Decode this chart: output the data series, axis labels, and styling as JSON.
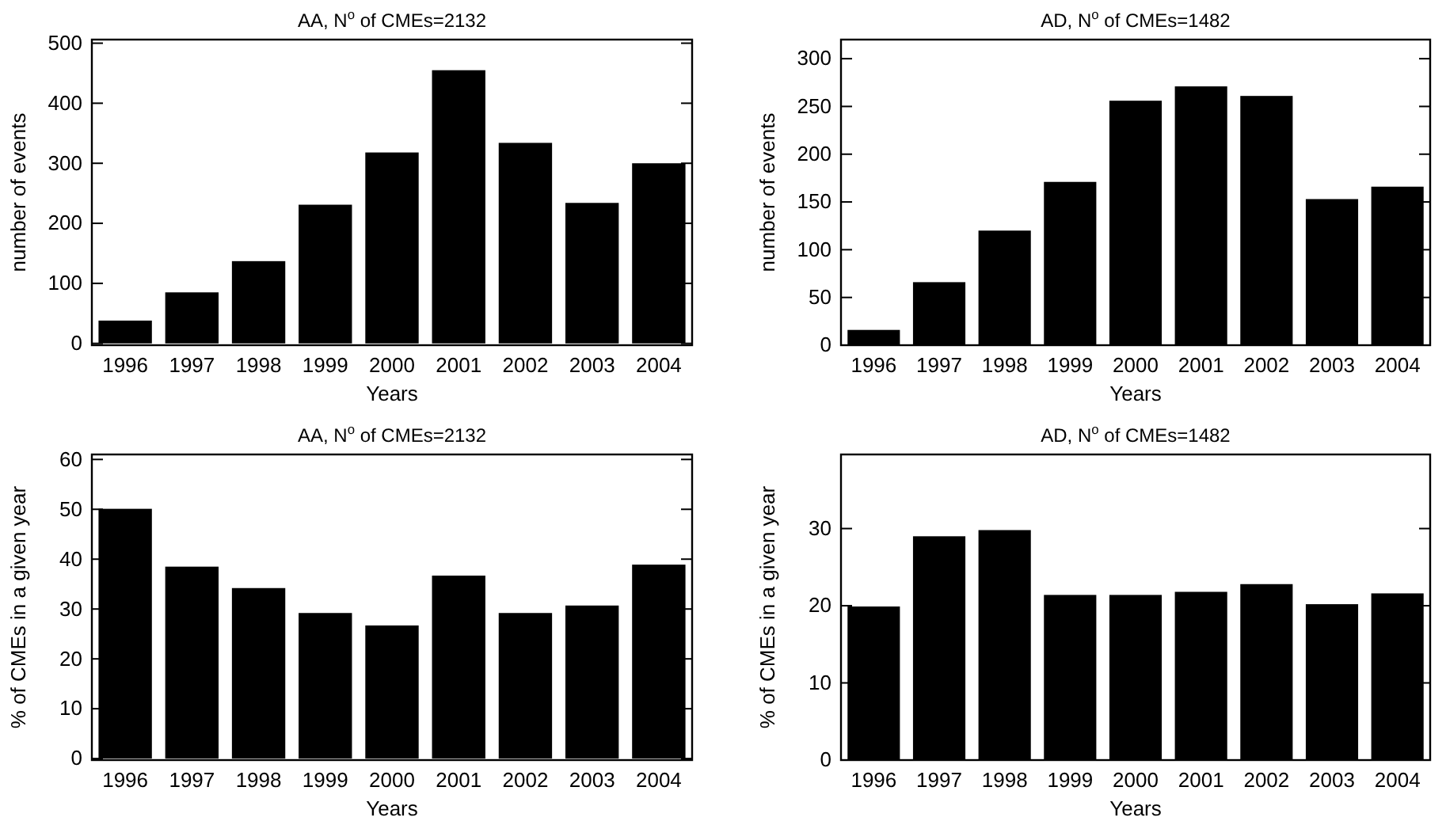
{
  "chart_data": [
    {
      "type": "bar",
      "title": "AA, N$^{o}$ of CMEs=2132",
      "xlabel": "Years",
      "ylabel": "number of events",
      "categories": [
        "1996",
        "1997",
        "1998",
        "1999",
        "2000",
        "2001",
        "2002",
        "2003",
        "2004"
      ],
      "values": [
        38,
        85,
        137,
        231,
        318,
        455,
        334,
        234,
        300
      ],
      "color": "#000000",
      "ylim": [
        -3,
        506
      ],
      "yticks": [
        0,
        100,
        200,
        300,
        400,
        500
      ]
    },
    {
      "type": "bar",
      "title": "AD, N$^{o}$ of CMEs=1482",
      "xlabel": "Years",
      "ylabel": "number of events",
      "categories": [
        "1996",
        "1997",
        "1998",
        "1999",
        "2000",
        "2001",
        "2002",
        "2003",
        "2004"
      ],
      "values": [
        16,
        66,
        120,
        171,
        256,
        271,
        261,
        153,
        166
      ],
      "color": "#000000",
      "ylim": [
        0,
        320
      ],
      "yticks": [
        0,
        50,
        100,
        150,
        200,
        250,
        300
      ]
    },
    {
      "type": "bar",
      "title": "AA, N$^{o}$ of CMEs=2132",
      "xlabel": "Years",
      "ylabel": "% of CMEs in a given year",
      "categories": [
        "1996",
        "1997",
        "1998",
        "1999",
        "2000",
        "2001",
        "2002",
        "2003",
        "2004"
      ],
      "values": [
        50.1,
        38.5,
        34.2,
        29.2,
        26.7,
        36.7,
        29.2,
        30.7,
        38.9
      ],
      "color": "#000000",
      "ylim": [
        -0.3,
        61
      ],
      "yticks": [
        0,
        10,
        20,
        30,
        40,
        50,
        60
      ]
    },
    {
      "type": "bar",
      "title": "AD, N$^{o}$ of CMEs=1482",
      "xlabel": "Years",
      "ylabel": "% of CMEs in a given year",
      "categories": [
        "1996",
        "1997",
        "1998",
        "1999",
        "2000",
        "2001",
        "2002",
        "2003",
        "2004"
      ],
      "values": [
        19.9,
        29.0,
        29.8,
        21.4,
        21.4,
        21.8,
        22.8,
        20.2,
        21.6
      ],
      "color": "#000000",
      "ylim": [
        0,
        39.6
      ],
      "yticks": [
        0,
        10,
        20,
        30
      ]
    }
  ]
}
